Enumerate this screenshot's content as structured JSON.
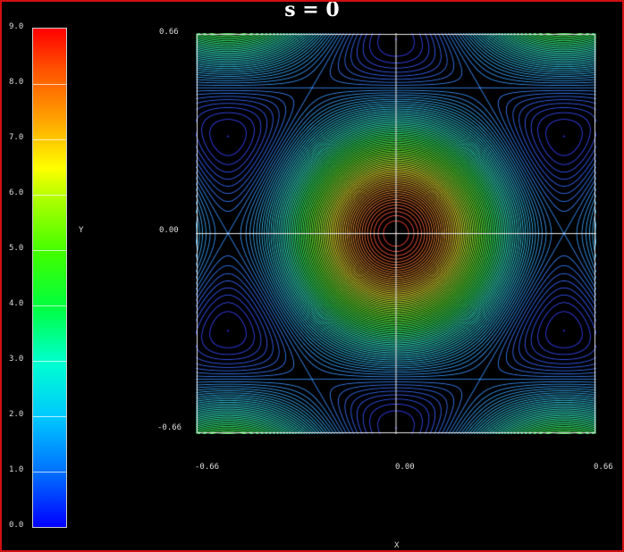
{
  "chart_data": {
    "type": "contour",
    "title": "s = 0",
    "xlabel": "X",
    "ylabel": "Y",
    "xlim": [
      -0.66,
      0.66
    ],
    "ylim": [
      -0.66,
      0.66
    ],
    "x_ticks": [
      "-0.66",
      "0.00",
      "0.66"
    ],
    "y_ticks": [
      "0.66",
      "0.00",
      "-0.66"
    ],
    "colorbar": {
      "range": [
        0,
        9
      ],
      "ticks": [
        "9.0",
        "8.0",
        "7.0",
        "6.0",
        "5.0",
        "4.0",
        "3.0",
        "2.0",
        "1.0",
        "0.0"
      ],
      "colors": [
        "#0000ff",
        "#00c8ff",
        "#00ff40",
        "#ffff00",
        "#ff0000"
      ]
    },
    "features": {
      "maximum": {
        "x": 0.0,
        "y": 0.0,
        "value": 9
      },
      "minima": [
        {
          "x": -0.58,
          "y": 0.33
        },
        {
          "x": 0.58,
          "y": 0.33
        },
        {
          "x": -0.58,
          "y": -0.33
        },
        {
          "x": 0.58,
          "y": -0.33
        },
        {
          "x": 0.0,
          "y": 0.62
        },
        {
          "x": 0.0,
          "y": -0.62
        }
      ]
    },
    "grid": false,
    "legend": "left colorbar"
  },
  "frame_color": "#d01010"
}
